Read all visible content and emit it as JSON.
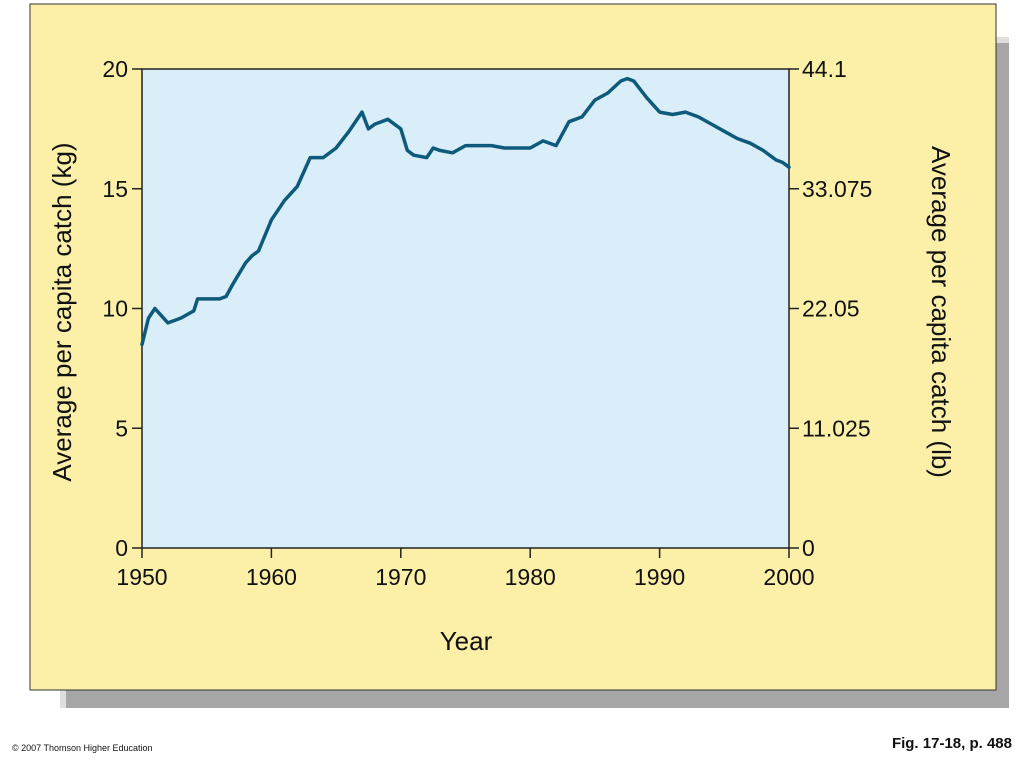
{
  "chart_data": {
    "type": "line",
    "xlabel": "Year",
    "ylabel_left": "Average per capita catch (kg)",
    "ylabel_right": "Average per capita catch (lb)",
    "x_ticks": [
      "1950",
      "1960",
      "1970",
      "1980",
      "1990",
      "2000"
    ],
    "y_ticks_left": [
      "0",
      "5",
      "10",
      "15",
      "20"
    ],
    "y_ticks_right": [
      "0",
      "11.025",
      "22.05",
      "33.075",
      "44.1"
    ],
    "xlim": [
      1950,
      2000
    ],
    "ylim_left": [
      0,
      20
    ],
    "ylim_right": [
      0,
      44.1
    ],
    "grid": false,
    "series": [
      {
        "x": [
          1950,
          1950.5,
          1951,
          1951.5,
          1952,
          1953,
          1954,
          1954.3,
          1955,
          1956,
          1956.5,
          1957,
          1958,
          1958.5,
          1959,
          1960,
          1960.5,
          1961,
          1962,
          1963,
          1963.5,
          1964,
          1965,
          1966,
          1967,
          1967.5,
          1968,
          1969,
          1970,
          1970.5,
          1971,
          1972,
          1972.5,
          1973,
          1974,
          1975,
          1976,
          1977,
          1978,
          1979,
          1980,
          1981,
          1982,
          1983,
          1983.5,
          1984,
          1985,
          1986,
          1987,
          1987.5,
          1988,
          1989,
          1990,
          1991,
          1992,
          1993,
          1994,
          1995,
          1996,
          1997,
          1998,
          1999,
          1999.5,
          2000
        ],
        "values": [
          8.5,
          9.6,
          10.0,
          9.7,
          9.4,
          9.6,
          9.9,
          10.4,
          10.4,
          10.4,
          10.5,
          11.0,
          11.9,
          12.2,
          12.4,
          13.7,
          14.1,
          14.5,
          15.1,
          16.3,
          16.3,
          16.3,
          16.7,
          17.4,
          18.2,
          17.5,
          17.7,
          17.9,
          17.5,
          16.6,
          16.4,
          16.3,
          16.7,
          16.6,
          16.5,
          16.8,
          16.8,
          16.8,
          16.7,
          16.7,
          16.7,
          17.0,
          16.8,
          17.8,
          17.9,
          18.0,
          18.7,
          19.0,
          19.5,
          19.6,
          19.5,
          18.8,
          18.2,
          18.1,
          18.2,
          18.0,
          17.7,
          17.4,
          17.1,
          16.9,
          16.6,
          16.2,
          16.1,
          15.9
        ]
      }
    ],
    "colors": {
      "line": "#0e5a7a",
      "plot_background": "#daeef9",
      "panel_background": "#fcefa8",
      "shadow": "#9a9a9a"
    }
  },
  "footer": {
    "copyright": "© 2007 Thomson Higher Education",
    "figure_ref": "Fig. 17-18, p. 488"
  }
}
